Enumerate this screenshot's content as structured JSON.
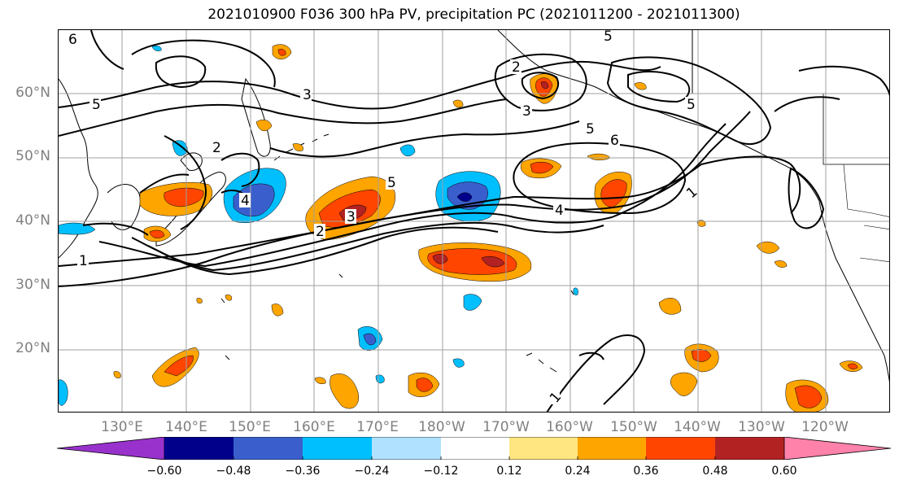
{
  "title": "2021010900 F036 300 hPa PV, precipitation PC (2021011200 - 2021011300)",
  "map": {
    "lat_labels": [
      "60°N",
      "50°N",
      "40°N",
      "30°N",
      "20°N"
    ],
    "lon_labels": [
      "130°E",
      "140°E",
      "150°E",
      "160°E",
      "170°E",
      "180°W",
      "170°W",
      "160°W",
      "150°W",
      "140°W",
      "130°W",
      "120°W"
    ],
    "contour_labels": {
      "l5_top_left": "5",
      "l3_mid": "3",
      "l5_center": "5",
      "l6_right": "6",
      "l5_right": "5",
      "l2_upper": "2",
      "l3_upper": "3",
      "l1_left": "1",
      "l2_center": "2",
      "l3_center": "3",
      "l4_center": "4",
      "l1_east": "1",
      "l1_south": "1",
      "l6_top_left": "6",
      "l5_top": "5",
      "l4_jet": "4",
      "l5_jet": "5",
      "l2_japan": "2"
    },
    "grid_color": "#a0a0a0",
    "contour_color": "#000000"
  },
  "colorbar": {
    "ticks": [
      "−0.60",
      "−0.48",
      "−0.36",
      "−0.24",
      "−0.12",
      "0.12",
      "0.24",
      "0.36",
      "0.48",
      "0.60"
    ],
    "colors": [
      "#9932cc",
      "#00008b",
      "#3a5fcd",
      "#00bfff",
      "#b0e2ff",
      "#ffffff",
      "#ffe680",
      "#ffa500",
      "#ff4500",
      "#b22222",
      "#ff82ab"
    ]
  }
}
